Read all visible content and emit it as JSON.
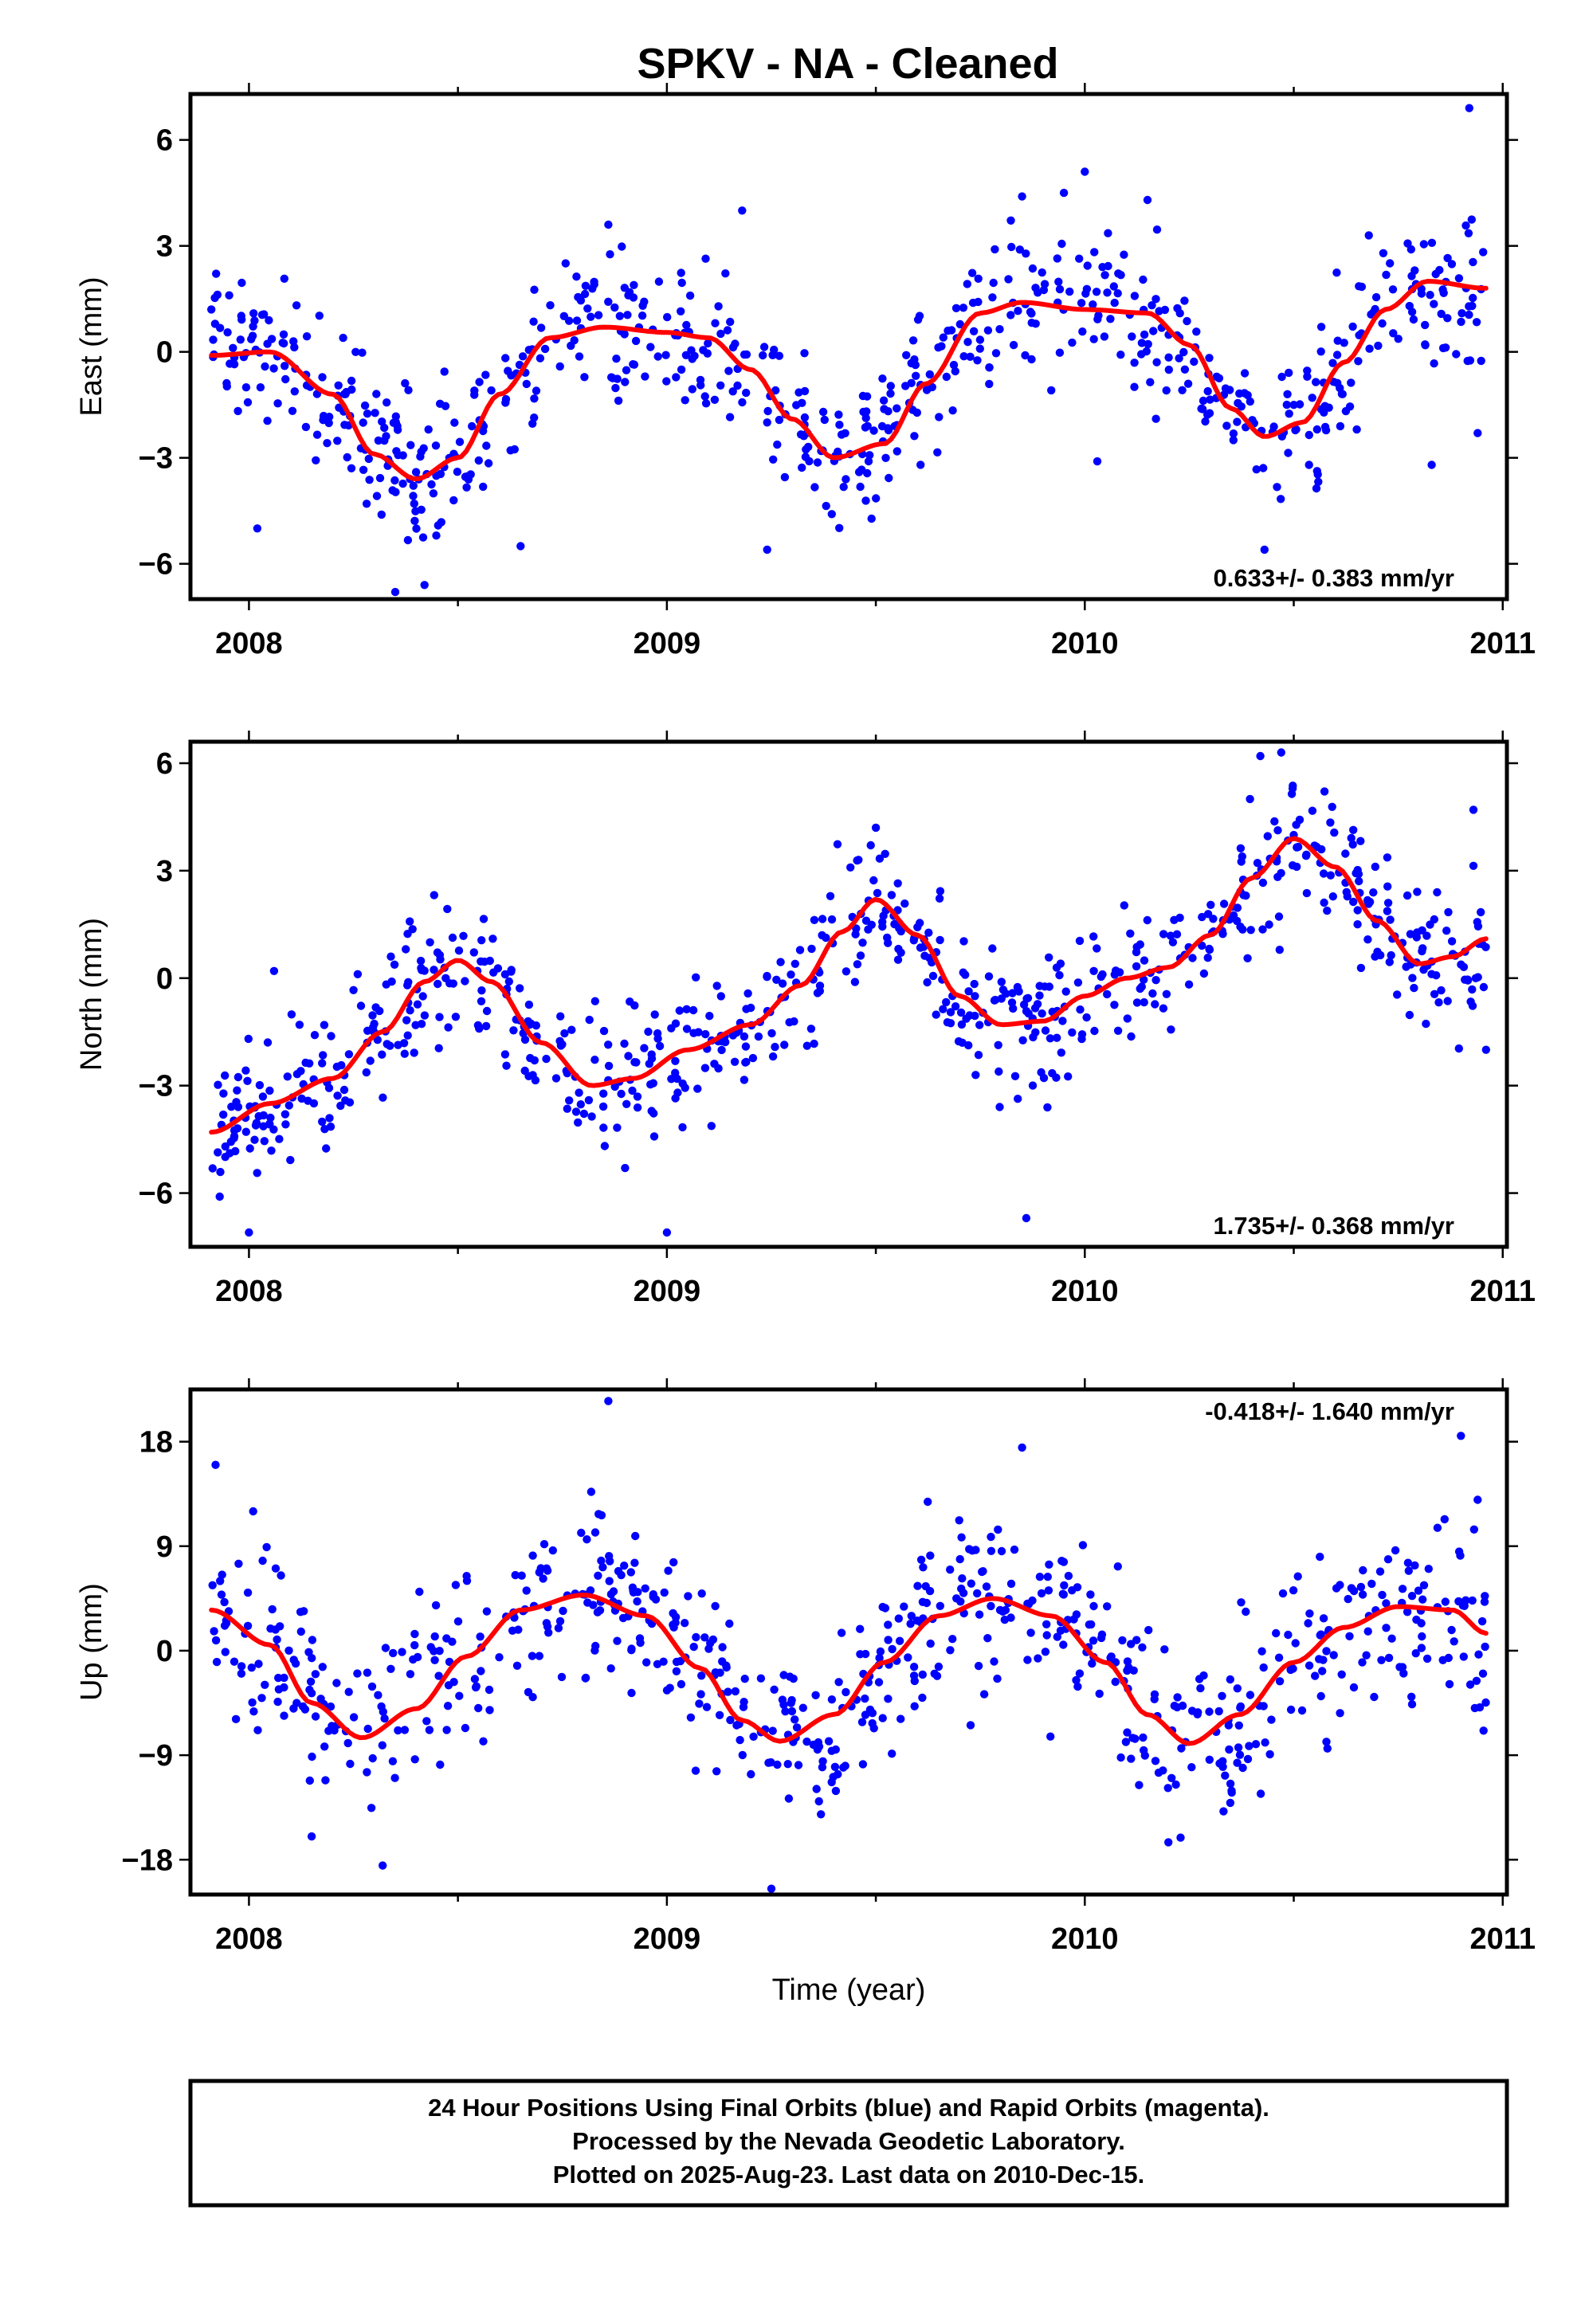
{
  "title": "SPKV  - NA - Cleaned",
  "footer": {
    "lines": [
      "24 Hour Positions Using Final Orbits (blue) and Rapid Orbits (magenta).",
      "Processed by the Nevada Geodetic Laboratory.",
      "Plotted on 2025-Aug-23. Last data on 2010-Dec-15."
    ]
  },
  "colors": {
    "points": "#0000ff",
    "fit": "#ff0000",
    "frame": "#000000"
  },
  "chart_data": [
    {
      "type": "scatter",
      "ylabel": "East (mm)",
      "xlabel": "",
      "rate_label": "0.633+/- 0.383 mm/yr",
      "rate_position": "bottom-right",
      "xlim": [
        2007.86,
        2011.01
      ],
      "ylim": [
        -7.0,
        7.3
      ],
      "xticks": [
        2008,
        2009,
        2010,
        2011
      ],
      "xtick_labels": [
        "2008",
        "2009",
        "2010",
        "2011"
      ],
      "yticks": [
        -6,
        -3,
        0,
        3,
        6
      ],
      "ytick_labels": [
        "−6",
        "−3",
        "0",
        "3",
        "6"
      ],
      "data_span": [
        2007.91,
        2010.96
      ],
      "point_count": 700,
      "fit_model": "linear trend + annual + semi-annual terms",
      "series": [
        {
          "name": "24 hour positions (final orbits)",
          "color": "#0000ff",
          "scatter_sigma": 1.05,
          "points_reference": [
            [
              2007.91,
              1.2
            ],
            [
              2008.02,
              -5.0
            ],
            [
              2008.35,
              -6.8
            ],
            [
              2008.42,
              -6.6
            ],
            [
              2008.65,
              -5.5
            ],
            [
              2008.86,
              3.6
            ],
            [
              2009.18,
              4.0
            ],
            [
              2009.24,
              -5.6
            ],
            [
              2009.85,
              4.4
            ],
            [
              2009.95,
              4.5
            ],
            [
              2010.03,
              -3.1
            ],
            [
              2010.0,
              5.1
            ],
            [
              2010.15,
              4.3
            ],
            [
              2010.43,
              -5.6
            ],
            [
              2010.83,
              -3.2
            ],
            [
              2010.92,
              6.9
            ],
            [
              2010.94,
              -2.3
            ]
          ]
        },
        {
          "name": "fit",
          "color": "#ff0000",
          "curve": [
            [
              2007.91,
              -0.1
            ],
            [
              2008.05,
              0.0
            ],
            [
              2008.2,
              -1.2
            ],
            [
              2008.3,
              -2.9
            ],
            [
              2008.4,
              -3.6
            ],
            [
              2008.5,
              -3.0
            ],
            [
              2008.6,
              -1.2
            ],
            [
              2008.72,
              0.4
            ],
            [
              2008.85,
              0.7
            ],
            [
              2009.0,
              0.55
            ],
            [
              2009.1,
              0.4
            ],
            [
              2009.2,
              -0.5
            ],
            [
              2009.3,
              -1.9
            ],
            [
              2009.4,
              -3.0
            ],
            [
              2009.52,
              -2.6
            ],
            [
              2009.62,
              -0.9
            ],
            [
              2009.75,
              1.1
            ],
            [
              2009.85,
              1.4
            ],
            [
              2010.0,
              1.2
            ],
            [
              2010.15,
              1.1
            ],
            [
              2010.25,
              0.2
            ],
            [
              2010.35,
              -1.6
            ],
            [
              2010.43,
              -2.4
            ],
            [
              2010.52,
              -2.0
            ],
            [
              2010.62,
              -0.3
            ],
            [
              2010.72,
              1.2
            ],
            [
              2010.82,
              2.0
            ],
            [
              2010.96,
              1.8
            ]
          ]
        }
      ]
    },
    {
      "type": "scatter",
      "ylabel": "North (mm)",
      "xlabel": "",
      "rate_label": "1.735+/- 0.368 mm/yr",
      "rate_position": "bottom-right",
      "xlim": [
        2007.86,
        2011.01
      ],
      "ylim": [
        -7.5,
        6.6
      ],
      "xticks": [
        2008,
        2009,
        2010,
        2011
      ],
      "xtick_labels": [
        "2008",
        "2009",
        "2010",
        "2011"
      ],
      "yticks": [
        -6,
        -3,
        0,
        3,
        6
      ],
      "ytick_labels": [
        "−6",
        "−3",
        "0",
        "3",
        "6"
      ],
      "data_span": [
        2007.91,
        2010.96
      ],
      "point_count": 720,
      "fit_model": "linear trend + annual + semi-annual terms",
      "series": [
        {
          "name": "24 hour positions (final orbits)",
          "color": "#0000ff",
          "scatter_sigma": 0.95,
          "points_reference": [
            [
              2007.93,
              -6.1
            ],
            [
              2008.0,
              -7.1
            ],
            [
              2008.06,
              0.2
            ],
            [
              2008.9,
              -5.3
            ],
            [
              2009.0,
              -7.1
            ],
            [
              2009.5,
              4.2
            ],
            [
              2009.86,
              -6.7
            ],
            [
              2010.42,
              6.2
            ],
            [
              2010.47,
              6.3
            ],
            [
              2010.93,
              4.7
            ],
            [
              2010.96,
              -2.0
            ]
          ]
        },
        {
          "name": "fit",
          "color": "#ff0000",
          "curve": [
            [
              2007.91,
              -4.3
            ],
            [
              2008.05,
              -3.5
            ],
            [
              2008.2,
              -2.8
            ],
            [
              2008.32,
              -1.5
            ],
            [
              2008.42,
              -0.1
            ],
            [
              2008.5,
              0.5
            ],
            [
              2008.58,
              -0.1
            ],
            [
              2008.7,
              -1.8
            ],
            [
              2008.82,
              -3.0
            ],
            [
              2008.92,
              -2.8
            ],
            [
              2009.05,
              -2.0
            ],
            [
              2009.2,
              -1.3
            ],
            [
              2009.32,
              -0.2
            ],
            [
              2009.42,
              1.3
            ],
            [
              2009.5,
              2.2
            ],
            [
              2009.6,
              1.2
            ],
            [
              2009.7,
              -0.5
            ],
            [
              2009.8,
              -1.3
            ],
            [
              2009.9,
              -1.2
            ],
            [
              2010.0,
              -0.5
            ],
            [
              2010.1,
              0.0
            ],
            [
              2010.2,
              0.3
            ],
            [
              2010.3,
              1.2
            ],
            [
              2010.4,
              2.8
            ],
            [
              2010.5,
              3.9
            ],
            [
              2010.6,
              3.1
            ],
            [
              2010.7,
              1.6
            ],
            [
              2010.8,
              0.4
            ],
            [
              2010.88,
              0.6
            ],
            [
              2010.96,
              1.1
            ]
          ]
        }
      ]
    },
    {
      "type": "scatter",
      "ylabel": "Up (mm)",
      "xlabel": "Time (year)",
      "rate_label": "-0.418+/- 1.640 mm/yr",
      "rate_position": "top-right",
      "xlim": [
        2007.86,
        2011.01
      ],
      "ylim": [
        -21,
        22.5
      ],
      "xticks": [
        2008,
        2009,
        2010,
        2011
      ],
      "xtick_labels": [
        "2008",
        "2009",
        "2010",
        "2011"
      ],
      "yticks": [
        -18,
        -9,
        0,
        9,
        18
      ],
      "ytick_labels": [
        "−18",
        "−9",
        "0",
        "9",
        "18"
      ],
      "data_span": [
        2007.91,
        2010.96
      ],
      "point_count": 700,
      "fit_model": "linear trend + annual + semi-annual terms",
      "series": [
        {
          "name": "24 hour positions (final orbits)",
          "color": "#0000ff",
          "scatter_sigma": 3.8,
          "points_reference": [
            [
              2007.92,
              16.0
            ],
            [
              2008.01,
              12.0
            ],
            [
              2008.15,
              -16.0
            ],
            [
              2008.32,
              -18.5
            ],
            [
              2008.86,
              21.5
            ],
            [
              2009.25,
              -20.5
            ],
            [
              2009.85,
              17.5
            ],
            [
              2010.2,
              -16.5
            ],
            [
              2010.9,
              18.5
            ],
            [
              2010.94,
              13.0
            ]
          ]
        },
        {
          "name": "fit",
          "color": "#ff0000",
          "curve": [
            [
              2007.91,
              3.5
            ],
            [
              2008.05,
              0.5
            ],
            [
              2008.15,
              -4.5
            ],
            [
              2008.27,
              -7.5
            ],
            [
              2008.4,
              -5.0
            ],
            [
              2008.52,
              -0.5
            ],
            [
              2008.65,
              3.5
            ],
            [
              2008.8,
              4.8
            ],
            [
              2008.95,
              3.0
            ],
            [
              2009.08,
              -1.5
            ],
            [
              2009.18,
              -6.0
            ],
            [
              2009.27,
              -7.8
            ],
            [
              2009.4,
              -5.5
            ],
            [
              2009.52,
              -1.0
            ],
            [
              2009.65,
              3.0
            ],
            [
              2009.78,
              4.5
            ],
            [
              2009.92,
              3.0
            ],
            [
              2010.05,
              -1.0
            ],
            [
              2010.15,
              -5.5
            ],
            [
              2010.25,
              -8.0
            ],
            [
              2010.37,
              -5.5
            ],
            [
              2010.5,
              -1.0
            ],
            [
              2010.62,
              2.0
            ],
            [
              2010.75,
              3.8
            ],
            [
              2010.88,
              3.5
            ],
            [
              2010.96,
              1.5
            ]
          ]
        }
      ]
    }
  ]
}
